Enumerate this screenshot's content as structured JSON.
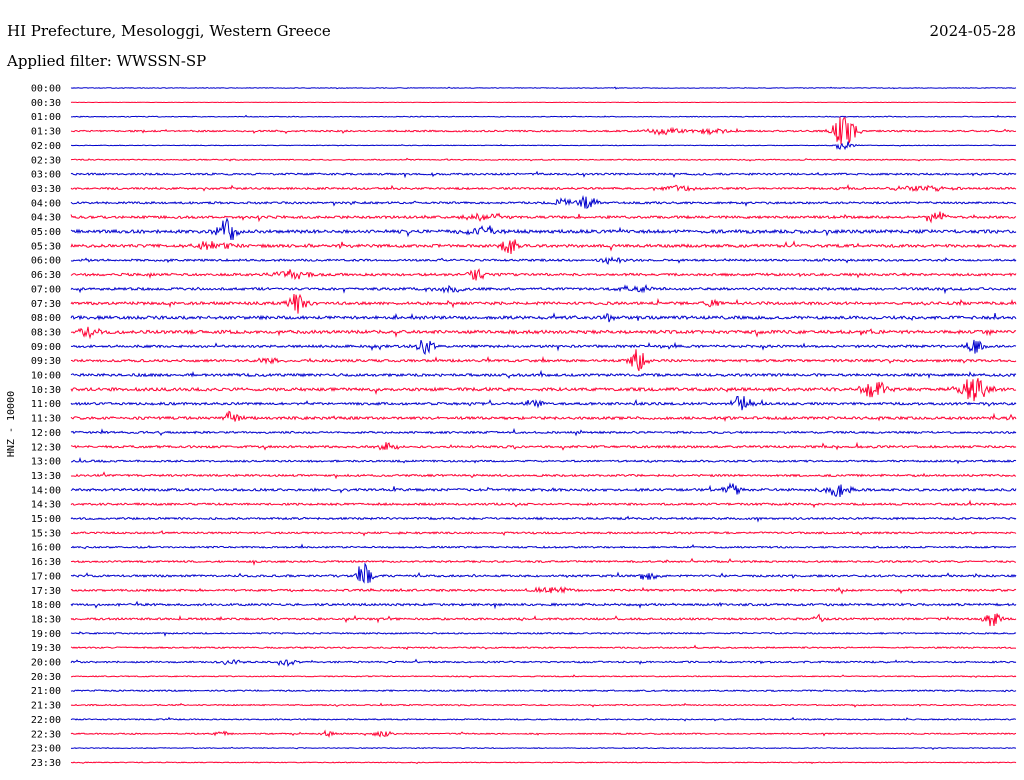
{
  "header": {
    "station_title": "HI Prefecture, Mesologgi, Western Greece",
    "date": "2024-05-28",
    "filter_label": "Applied filter: WWSSN-SP"
  },
  "chart_data": {
    "type": "line",
    "title": "HI Prefecture, Mesologgi, Western Greece",
    "subtitle": "Applied filter: WWSSN-SP",
    "ylabel": "HNZ - 10000",
    "xlabel": "",
    "grid": false,
    "colors": {
      "even_row": "#0000cc",
      "odd_row": "#ff0033"
    },
    "rows": [
      {
        "label": "00:00",
        "noise": 0.3,
        "events": []
      },
      {
        "label": "00:30",
        "noise": 0.2,
        "events": []
      },
      {
        "label": "01:00",
        "noise": 0.4,
        "events": []
      },
      {
        "label": "01:30",
        "noise": 0.8,
        "events": [
          [
            0.63,
            4,
            0.02
          ],
          [
            0.68,
            3,
            0.02
          ],
          [
            0.818,
            18,
            0.012
          ]
        ]
      },
      {
        "label": "02:00",
        "noise": 0.3,
        "events": [
          [
            0.818,
            5,
            0.01
          ]
        ]
      },
      {
        "label": "02:30",
        "noise": 0.5,
        "events": []
      },
      {
        "label": "03:00",
        "noise": 0.9,
        "events": []
      },
      {
        "label": "03:30",
        "noise": 1.0,
        "events": [
          [
            0.64,
            3,
            0.02
          ],
          [
            0.9,
            3,
            0.03
          ]
        ]
      },
      {
        "label": "04:00",
        "noise": 1.0,
        "events": [
          [
            0.52,
            4,
            0.01
          ],
          [
            0.545,
            8,
            0.01
          ]
        ]
      },
      {
        "label": "04:30",
        "noise": 1.2,
        "events": [
          [
            0.44,
            4,
            0.02
          ],
          [
            0.915,
            8,
            0.01
          ]
        ]
      },
      {
        "label": "05:00",
        "noise": 1.6,
        "events": [
          [
            0.165,
            14,
            0.01
          ],
          [
            0.43,
            4,
            0.02
          ]
        ]
      },
      {
        "label": "05:30",
        "noise": 1.4,
        "events": [
          [
            0.15,
            5,
            0.02
          ],
          [
            0.465,
            9,
            0.01
          ]
        ]
      },
      {
        "label": "06:00",
        "noise": 1.0,
        "events": [
          [
            0.57,
            3,
            0.02
          ]
        ]
      },
      {
        "label": "06:30",
        "noise": 1.2,
        "events": [
          [
            0.235,
            5,
            0.02
          ],
          [
            0.43,
            7,
            0.01
          ]
        ]
      },
      {
        "label": "07:00",
        "noise": 1.2,
        "events": [
          [
            0.4,
            3,
            0.02
          ],
          [
            0.6,
            3,
            0.02
          ]
        ]
      },
      {
        "label": "07:30",
        "noise": 1.4,
        "events": [
          [
            0.24,
            10,
            0.01
          ],
          [
            0.68,
            4,
            0.01
          ]
        ]
      },
      {
        "label": "08:00",
        "noise": 1.5,
        "events": [
          [
            0.57,
            5,
            0.005
          ]
        ]
      },
      {
        "label": "08:30",
        "noise": 1.6,
        "events": [
          [
            0.02,
            5,
            0.01
          ]
        ]
      },
      {
        "label": "09:00",
        "noise": 1.2,
        "events": [
          [
            0.375,
            8,
            0.01
          ],
          [
            0.955,
            7,
            0.01
          ]
        ]
      },
      {
        "label": "09:30",
        "noise": 1.2,
        "events": [
          [
            0.6,
            11,
            0.01
          ],
          [
            0.21,
            4,
            0.01
          ]
        ]
      },
      {
        "label": "10:00",
        "noise": 1.3,
        "events": []
      },
      {
        "label": "10:30",
        "noise": 1.5,
        "events": [
          [
            0.85,
            8,
            0.015
          ],
          [
            0.955,
            12,
            0.015
          ]
        ]
      },
      {
        "label": "11:00",
        "noise": 1.2,
        "events": [
          [
            0.71,
            11,
            0.01
          ],
          [
            0.49,
            4,
            0.01
          ]
        ]
      },
      {
        "label": "11:30",
        "noise": 1.3,
        "events": [
          [
            0.17,
            7,
            0.008
          ]
        ]
      },
      {
        "label": "12:00",
        "noise": 1.0,
        "events": []
      },
      {
        "label": "12:30",
        "noise": 1.1,
        "events": [
          [
            0.335,
            5,
            0.01
          ]
        ]
      },
      {
        "label": "13:00",
        "noise": 0.9,
        "events": []
      },
      {
        "label": "13:30",
        "noise": 1.0,
        "events": []
      },
      {
        "label": "14:00",
        "noise": 1.2,
        "events": [
          [
            0.7,
            6,
            0.01
          ],
          [
            0.81,
            7,
            0.015
          ]
        ]
      },
      {
        "label": "14:30",
        "noise": 1.0,
        "events": []
      },
      {
        "label": "15:00",
        "noise": 1.0,
        "events": []
      },
      {
        "label": "15:30",
        "noise": 0.9,
        "events": []
      },
      {
        "label": "16:00",
        "noise": 0.8,
        "events": []
      },
      {
        "label": "16:30",
        "noise": 0.9,
        "events": []
      },
      {
        "label": "17:00",
        "noise": 1.0,
        "events": [
          [
            0.31,
            14,
            0.008
          ],
          [
            0.61,
            4,
            0.01
          ]
        ]
      },
      {
        "label": "17:30",
        "noise": 1.0,
        "events": [
          [
            0.51,
            3,
            0.02
          ]
        ]
      },
      {
        "label": "18:00",
        "noise": 1.1,
        "events": []
      },
      {
        "label": "18:30",
        "noise": 1.0,
        "events": [
          [
            0.79,
            6,
            0.006
          ],
          [
            0.975,
            9,
            0.008
          ]
        ]
      },
      {
        "label": "19:00",
        "noise": 0.7,
        "events": []
      },
      {
        "label": "19:30",
        "noise": 0.7,
        "events": []
      },
      {
        "label": "20:00",
        "noise": 0.8,
        "events": [
          [
            0.17,
            3,
            0.01
          ],
          [
            0.23,
            3,
            0.01
          ]
        ]
      },
      {
        "label": "20:30",
        "noise": 0.5,
        "events": []
      },
      {
        "label": "21:00",
        "noise": 0.7,
        "events": []
      },
      {
        "label": "21:30",
        "noise": 0.6,
        "events": []
      },
      {
        "label": "22:00",
        "noise": 0.6,
        "events": []
      },
      {
        "label": "22:30",
        "noise": 0.6,
        "events": [
          [
            0.16,
            3,
            0.01
          ],
          [
            0.27,
            3,
            0.01
          ],
          [
            0.33,
            3,
            0.01
          ]
        ]
      },
      {
        "label": "23:00",
        "noise": 0.4,
        "events": []
      },
      {
        "label": "23:30",
        "noise": 0.4,
        "events": []
      }
    ]
  }
}
